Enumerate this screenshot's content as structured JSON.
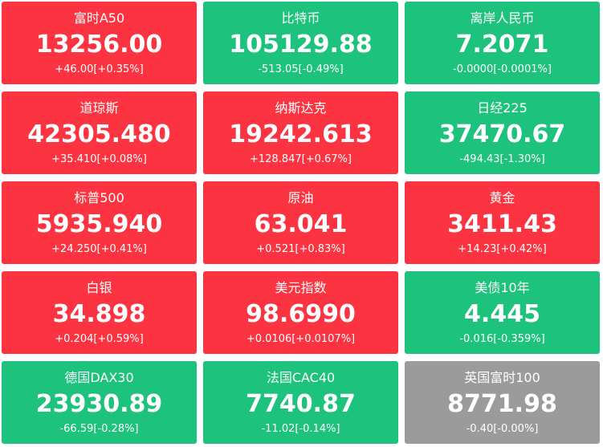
{
  "tiles": [
    {
      "name": "富时A50",
      "price": "13256.00",
      "change": "+46.00[+0.35%]",
      "color": "#fc3340"
    },
    {
      "name": "比特币",
      "price": "105129.88",
      "change": "-513.05[-0.49%]",
      "color": "#1dc27d"
    },
    {
      "name": "离岸人民币",
      "price": "7.2071",
      "change": "-0.0000[-0.0001%]",
      "color": "#1dc27d"
    },
    {
      "name": "道琼斯",
      "price": "42305.480",
      "change": "+35.410[+0.08%]",
      "color": "#fc3340"
    },
    {
      "name": "纳斯达克",
      "price": "19242.613",
      "change": "+128.847[+0.67%]",
      "color": "#fc3340"
    },
    {
      "name": "日经225",
      "price": "37470.67",
      "change": "-494.43[-1.30%]",
      "color": "#1dc27d"
    },
    {
      "name": "标普500",
      "price": "5935.940",
      "change": "+24.250[+0.41%]",
      "color": "#fc3340"
    },
    {
      "name": "原油",
      "price": "63.041",
      "change": "+0.521[+0.83%]",
      "color": "#fc3340"
    },
    {
      "name": "黄金",
      "price": "3411.43",
      "change": "+14.23[+0.42%]",
      "color": "#fc3340"
    },
    {
      "name": "白银",
      "price": "34.898",
      "change": "+0.204[+0.59%]",
      "color": "#fc3340"
    },
    {
      "name": "美元指数",
      "price": "98.6990",
      "change": "+0.0106[+0.0107%]",
      "color": "#fc3340"
    },
    {
      "name": "美债10年",
      "price": "4.445",
      "change": "-0.016[-0.359%]",
      "color": "#1dc27d"
    },
    {
      "name": "德国DAX30",
      "price": "23930.89",
      "change": "-66.59[-0.28%]",
      "color": "#1dc27d"
    },
    {
      "name": "法国CAC40",
      "price": "7740.87",
      "change": "-11.02[-0.14%]",
      "color": "#1dc27d"
    },
    {
      "name": "英国富时100",
      "price": "8771.98",
      "change": "-0.40[-0.00%]",
      "color": "#9b9b9b"
    }
  ]
}
